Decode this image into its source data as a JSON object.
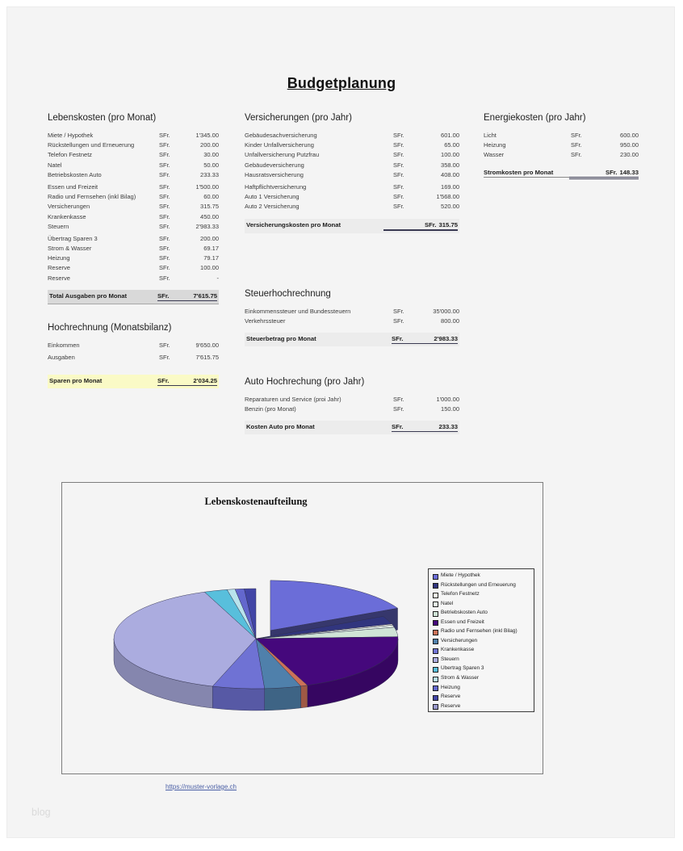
{
  "page": {
    "title": "Budgetplanung",
    "link": "https://muster-vorlage.ch",
    "watermark": "blog"
  },
  "currency": "SFr.",
  "sections": {
    "lebenskosten": {
      "title": "Lebenskosten (pro Monat)",
      "rows": [
        {
          "label": "Miete / Hypothek",
          "value": "1'345.00"
        },
        {
          "label": "Rückstellungen und Erneuerung",
          "value": "200.00"
        },
        {
          "label": "Telefon Festnetz",
          "value": "30.00"
        },
        {
          "label": "Natel",
          "value": "50.00"
        },
        {
          "label": "Betriebskosten Auto",
          "value": "233.33"
        },
        {
          "label": "Essen und Freizeit",
          "value": "1'500.00",
          "gap": true
        },
        {
          "label": "Radio und Fernsehen (inkl Bilag)",
          "value": "60.00"
        },
        {
          "label": "Versicherungen",
          "value": "315.75"
        },
        {
          "label": "Krankenkasse",
          "value": "450.00"
        },
        {
          "label": "Steuern",
          "value": "2'983.33"
        },
        {
          "label": "Übertrag Sparen 3",
          "value": "200.00",
          "gap": true
        },
        {
          "label": "Strom & Wasser",
          "value": "69.17"
        },
        {
          "label": "Heizung",
          "value": "79.17"
        },
        {
          "label": "Reserve",
          "value": "100.00"
        },
        {
          "label": "Reserve",
          "value": "-"
        }
      ],
      "total": {
        "label": "Total Ausgaben pro Monat",
        "value": "7'615.75"
      }
    },
    "hochrechnung": {
      "title": "Hochrechnung (Monatsbilanz)",
      "rows": [
        {
          "label": "Einkommen",
          "value": "9'650.00"
        },
        {
          "label": "Ausgaben",
          "value": "7'615.75"
        }
      ],
      "total": {
        "label": "Sparen pro Monat",
        "value": "2'034.25"
      }
    },
    "versicherungen": {
      "title": "Versicherungen (pro Jahr)",
      "rows": [
        {
          "label": "Gebäudesachversicherung",
          "value": "601.00"
        },
        {
          "label": "Kinder Unfallversicherung",
          "value": "65.00"
        },
        {
          "label": "Unfallversicherung Putzfrau",
          "value": "100.00"
        },
        {
          "label": "Gebäudeversicherung",
          "value": "358.00"
        },
        {
          "label": "Hausratsversicherung",
          "value": "408.00"
        },
        {
          "label": "Haftpflichtversicherung",
          "value": "169.00",
          "gap": true
        },
        {
          "label": "Auto 1 Versicherung",
          "value": "1'568.00"
        },
        {
          "label": "Auto 2 Versicherung",
          "value": "520.00"
        }
      ],
      "total": {
        "label": "Versicherungskosten pro Monat",
        "value": "315.75"
      }
    },
    "steuer": {
      "title": "Steuerhochrechnung",
      "rows": [
        {
          "label": "Einkommenssteuer und Bundessteuern",
          "value": "35'000.00"
        },
        {
          "label": "Verkehrssteuer",
          "value": "800.00"
        }
      ],
      "total": {
        "label": "Steuerbetrag pro Monat",
        "value": "2'983.33"
      }
    },
    "auto": {
      "title": "Auto Hochrechung (pro Jahr)",
      "rows": [
        {
          "label": "Reparaturen und Service (proi Jahr)",
          "value": "1'000.00"
        },
        {
          "label": "Benzin (pro Monat)",
          "value": "150.00"
        }
      ],
      "total": {
        "label": "Kosten Auto pro Monat",
        "value": "233.33"
      }
    },
    "energie": {
      "title": "Energiekosten (pro Jahr)",
      "rows": [
        {
          "label": "Licht",
          "value": "600.00"
        },
        {
          "label": "Heizung",
          "value": "950.00"
        },
        {
          "label": "Wasser",
          "value": "230.00"
        }
      ],
      "total": {
        "label": "Stromkosten pro Monat",
        "value": "148.33"
      }
    }
  },
  "chart_data": {
    "type": "pie",
    "style": "3d-exploded",
    "title": "Lebenskostenaufteilung",
    "legend_position": "right",
    "labels": [
      "Miete / Hypothek",
      "Rückstellungen und Erneuerung",
      "Telefon Festnetz",
      "Natel",
      "Betriebskosten Auto",
      "Essen und Freizeit",
      "Radio und Fernsehen (inkl Bilag)",
      "Versicherungen",
      "Krankenkasse",
      "Steuern",
      "Übertrag Sparen 3",
      "Strom & Wasser",
      "Heizung",
      "Reserve",
      "Reserve"
    ],
    "values": [
      1345.0,
      200.0,
      30.0,
      50.0,
      233.33,
      1500.0,
      60.0,
      315.75,
      450.0,
      2983.33,
      200.0,
      69.17,
      79.17,
      100.0,
      0
    ],
    "colors": [
      "#6b6dd8",
      "#31357e",
      "#fdfdef",
      "#e8f4ea",
      "#cfe3d6",
      "#45087c",
      "#cc7258",
      "#4f80ab",
      "#6f72d4",
      "#abacdf",
      "#58bfdc",
      "#b9e3ec",
      "#6367cd",
      "#4245a6",
      "#9999cc"
    ],
    "exploded_index": 0,
    "total": 7615.75
  }
}
